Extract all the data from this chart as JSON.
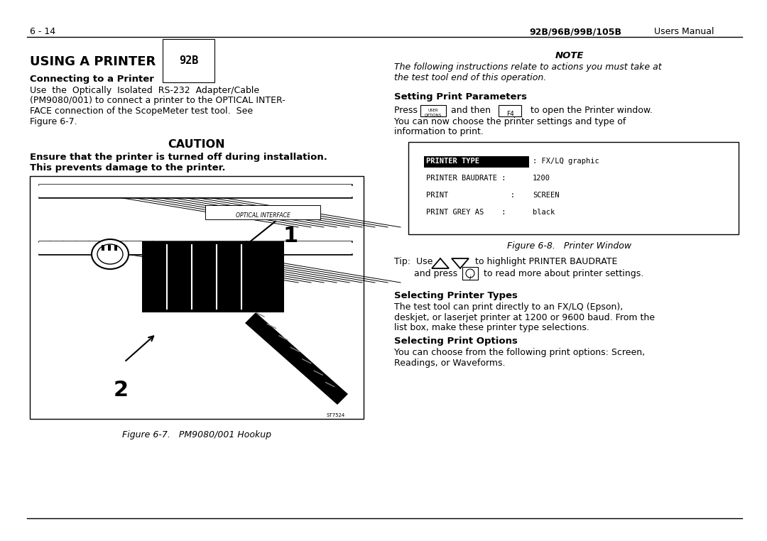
{
  "bg_color": "#ffffff",
  "page_width": 10.8,
  "page_height": 7.62,
  "header_left": "6 - 14",
  "header_bold": "92B/96B/99B/105B",
  "header_normal": "    Users Manual",
  "title_main": "USING A PRINTER ",
  "title_tag": "92B",
  "section1_head": "Connecting to a Printer",
  "caution_title": "CAUTION",
  "caution_body1": "Ensure that the printer is turned off during installation.",
  "caution_body2": "This prevents damage to the printer.",
  "fig1_caption": "Figure 6-7.   PM9080/001 Hookup",
  "note_title": "NOTE",
  "section2_head": "Setting Print Parameters",
  "printer_window_lines": [
    [
      "PRINTER TYPE         ",
      " FX/LQ graphic",
      true
    ],
    [
      "PRINTER BAUDRATE :",
      " 1200",
      false
    ],
    [
      "PRINT              :",
      " SCREEN",
      false
    ],
    [
      "PRINT GREY AS    :",
      " black",
      false
    ]
  ],
  "fig2_caption": "Figure 6-8.   Printer Window",
  "section3_head": "Selecting Printer Types",
  "section4_head": "Selecting Print Options"
}
